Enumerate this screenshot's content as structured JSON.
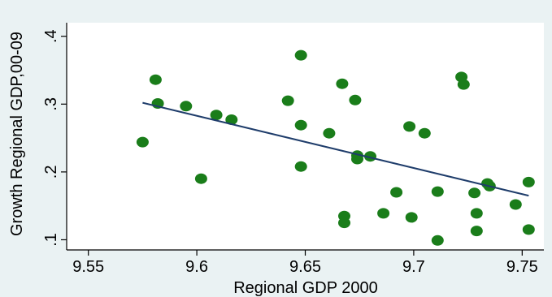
{
  "chart_data": {
    "type": "scatter",
    "xlabel": "Regional GDP 2000",
    "ylabel": "Growth Regional GDP,00-09",
    "xlim": [
      9.54,
      9.76
    ],
    "ylim": [
      0.085,
      0.42
    ],
    "x_ticks": [
      9.55,
      9.6,
      9.65,
      9.7,
      9.75
    ],
    "x_tick_labels": [
      "9.55",
      "9.6",
      "9.65",
      "9.7",
      "9.75"
    ],
    "y_ticks": [
      0.1,
      0.2,
      0.3,
      0.4
    ],
    "y_tick_labels": [
      ".1",
      ".2",
      ".3",
      ".4"
    ],
    "grid": false,
    "legend": "none",
    "colors": {
      "background": "#eaf2f3",
      "plot_area": "#ffffff",
      "marker": "#1a7d1a",
      "fit_line": "#1f3d6b"
    },
    "series": [
      {
        "marker": "filled-circle",
        "x": [
          9.575,
          9.581,
          9.582,
          9.595,
          9.602,
          9.609,
          9.616,
          9.642,
          9.648,
          9.648,
          9.648,
          9.661,
          9.667,
          9.668,
          9.668,
          9.673,
          9.674,
          9.674,
          9.68,
          9.686,
          9.692,
          9.698,
          9.699,
          9.705,
          9.711,
          9.711,
          9.722,
          9.723,
          9.728,
          9.729,
          9.729,
          9.734,
          9.735,
          9.747,
          9.753,
          9.753
        ],
        "y": [
          0.244,
          0.336,
          0.301,
          0.297,
          0.19,
          0.284,
          0.277,
          0.305,
          0.372,
          0.269,
          0.208,
          0.257,
          0.33,
          0.135,
          0.125,
          0.306,
          0.224,
          0.219,
          0.223,
          0.139,
          0.17,
          0.267,
          0.133,
          0.257,
          0.171,
          0.099,
          0.34,
          0.329,
          0.169,
          0.139,
          0.113,
          0.183,
          0.179,
          0.152,
          0.185,
          0.115
        ]
      }
    ],
    "fit_line": {
      "x": [
        9.575,
        9.753
      ],
      "y": [
        0.302,
        0.165
      ]
    }
  }
}
